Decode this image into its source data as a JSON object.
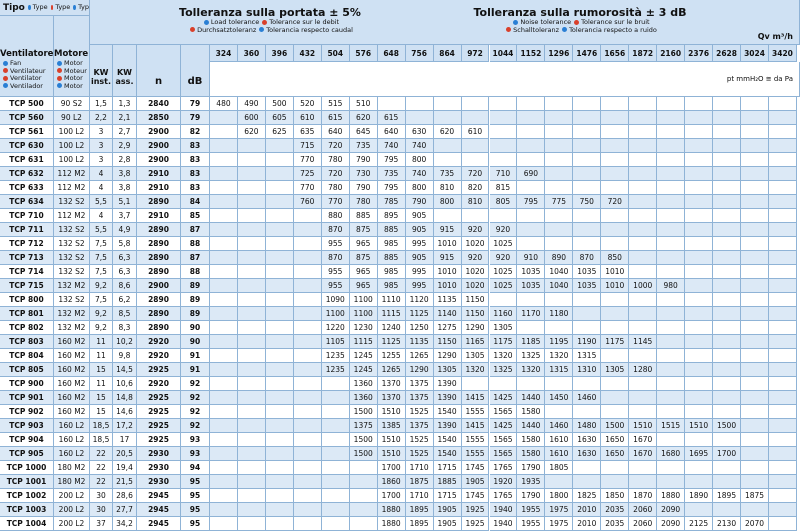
{
  "header": {
    "type_label": "Tipo",
    "type_langs": [
      "Type",
      "Type",
      "Typ"
    ],
    "fan_label": "Ventilatore",
    "fan_langs": [
      "Fan",
      "Ventilateur",
      "Ventilator",
      "Ventilador"
    ],
    "motor_label": "Motore",
    "motor_langs": [
      "Motor",
      "Moteur",
      "Motor",
      "Motor"
    ],
    "flow_tolerance": "Tolleranza sulla portata  ± 5%",
    "flow_langs": [
      "Load tolerance",
      "Tolerance sur le debit",
      "Durchsatztoleranz",
      "Tolerancia respecto caudal"
    ],
    "noise_tolerance": "Tolleranza sulla rumorosità  ± 3 dB",
    "noise_langs": [
      "Noise tolerance",
      "Tolerance sur le bruit",
      "Schalltoleranz",
      "Tolerancia respecto a ruido"
    ],
    "flow_unit": "Qv m³/h",
    "columns": [
      "KW inst.",
      "KW ass.",
      "n",
      "dB"
    ],
    "pressure_unit": "pt mmH₂O ≅ da Pa"
  },
  "flows": [
    324,
    360,
    396,
    432,
    504,
    576,
    648,
    756,
    864,
    972,
    1044,
    1152,
    1296,
    1476,
    1656,
    1872,
    2160,
    2376,
    2628,
    3024,
    3420
  ],
  "rows": [
    {
      "model": "TCP 500",
      "motor": "90 S2",
      "kw_inst": "1,5",
      "kw_ass": "1,3",
      "n": 2840,
      "db": 79,
      "pt": [
        480,
        490,
        500,
        520,
        515,
        510,
        null,
        null,
        null,
        null,
        null,
        null,
        null,
        null,
        null,
        null,
        null,
        null,
        null,
        null,
        null
      ]
    },
    {
      "model": "TCP 560",
      "motor": "90 L2",
      "kw_inst": "2,2",
      "kw_ass": "2,1",
      "n": 2850,
      "db": 79,
      "pt": [
        null,
        600,
        605,
        610,
        615,
        620,
        615,
        null,
        null,
        null,
        null,
        null,
        null,
        null,
        null,
        null,
        null,
        null,
        null,
        null,
        null
      ]
    },
    {
      "model": "TCP 561",
      "motor": "100 L2",
      "kw_inst": "3",
      "kw_ass": "2,7",
      "n": 2900,
      "db": 82,
      "pt": [
        null,
        620,
        625,
        635,
        640,
        645,
        640,
        630,
        620,
        610,
        null,
        null,
        null,
        null,
        null,
        null,
        null,
        null,
        null,
        null,
        null
      ]
    },
    {
      "model": "TCP 630",
      "motor": "100 L2",
      "kw_inst": "3",
      "kw_ass": "2,9",
      "n": 2900,
      "db": 83,
      "pt": [
        null,
        null,
        null,
        715,
        720,
        735,
        740,
        740,
        null,
        null,
        null,
        null,
        null,
        null,
        null,
        null,
        null,
        null,
        null,
        null,
        null
      ]
    },
    {
      "model": "TCP 631",
      "motor": "100 L2",
      "kw_inst": "3",
      "kw_ass": "2,8",
      "n": 2900,
      "db": 83,
      "pt": [
        null,
        null,
        null,
        770,
        780,
        790,
        795,
        800,
        null,
        null,
        null,
        null,
        null,
        null,
        null,
        null,
        null,
        null,
        null,
        null,
        null
      ]
    },
    {
      "model": "TCP 632",
      "motor": "112 M2",
      "kw_inst": "4",
      "kw_ass": "3,8",
      "n": 2910,
      "db": 83,
      "pt": [
        null,
        null,
        null,
        725,
        720,
        730,
        735,
        740,
        735,
        720,
        710,
        690,
        null,
        null,
        null,
        null,
        null,
        null,
        null,
        null,
        null
      ]
    },
    {
      "model": "TCP 633",
      "motor": "112 M2",
      "kw_inst": "4",
      "kw_ass": "3,8",
      "n": 2910,
      "db": 83,
      "pt": [
        null,
        null,
        null,
        770,
        780,
        790,
        795,
        800,
        810,
        820,
        815,
        null,
        null,
        null,
        null,
        null,
        null,
        null,
        null,
        null,
        null
      ]
    },
    {
      "model": "TCP 634",
      "motor": "132 S2",
      "kw_inst": "5,5",
      "kw_ass": "5,1",
      "n": 2890,
      "db": 84,
      "pt": [
        null,
        null,
        null,
        760,
        770,
        780,
        785,
        790,
        800,
        810,
        805,
        795,
        775,
        750,
        720,
        null,
        null,
        null,
        null,
        null,
        null
      ]
    },
    {
      "model": "TCP 710",
      "motor": "112 M2",
      "kw_inst": "4",
      "kw_ass": "3,7",
      "n": 2910,
      "db": 85,
      "pt": [
        null,
        null,
        null,
        null,
        880,
        885,
        895,
        905,
        null,
        null,
        null,
        null,
        null,
        null,
        null,
        null,
        null,
        null,
        null,
        null,
        null
      ]
    },
    {
      "model": "TCP 711",
      "motor": "132 S2",
      "kw_inst": "5,5",
      "kw_ass": "4,9",
      "n": 2890,
      "db": 87,
      "pt": [
        null,
        null,
        null,
        null,
        870,
        875,
        885,
        905,
        915,
        920,
        920,
        null,
        null,
        null,
        null,
        null,
        null,
        null,
        null,
        null,
        null
      ]
    },
    {
      "model": "TCP 712",
      "motor": "132 S2",
      "kw_inst": "7,5",
      "kw_ass": "5,8",
      "n": 2890,
      "db": 88,
      "pt": [
        null,
        null,
        null,
        null,
        955,
        965,
        985,
        995,
        1010,
        1020,
        1025,
        null,
        null,
        null,
        null,
        null,
        null,
        null,
        null,
        null,
        null
      ]
    },
    {
      "model": "TCP 713",
      "motor": "132 S2",
      "kw_inst": "7,5",
      "kw_ass": "6,3",
      "n": 2890,
      "db": 87,
      "pt": [
        null,
        null,
        null,
        null,
        870,
        875,
        885,
        905,
        915,
        920,
        920,
        910,
        890,
        870,
        850,
        null,
        null,
        null,
        null,
        null,
        null
      ]
    },
    {
      "model": "TCP 714",
      "motor": "132 S2",
      "kw_inst": "7,5",
      "kw_ass": "6,3",
      "n": 2890,
      "db": 88,
      "pt": [
        null,
        null,
        null,
        null,
        955,
        965,
        985,
        995,
        1010,
        1020,
        1025,
        1035,
        1040,
        1035,
        1010,
        null,
        null,
        null,
        null,
        null,
        null
      ]
    },
    {
      "model": "TCP 715",
      "motor": "132 M2",
      "kw_inst": "9,2",
      "kw_ass": "8,6",
      "n": 2900,
      "db": 89,
      "pt": [
        null,
        null,
        null,
        null,
        955,
        965,
        985,
        995,
        1010,
        1020,
        1025,
        1035,
        1040,
        1035,
        1010,
        1000,
        980,
        null,
        null,
        null,
        null
      ]
    },
    {
      "model": "TCP 800",
      "motor": "132 S2",
      "kw_inst": "7,5",
      "kw_ass": "6,2",
      "n": 2890,
      "db": 89,
      "pt": [
        null,
        null,
        null,
        null,
        1090,
        1100,
        1110,
        1120,
        1135,
        1150,
        null,
        null,
        null,
        null,
        null,
        null,
        null,
        null,
        null,
        null,
        null
      ]
    },
    {
      "model": "TCP 801",
      "motor": "132 M2",
      "kw_inst": "9,2",
      "kw_ass": "8,5",
      "n": 2890,
      "db": 89,
      "pt": [
        null,
        null,
        null,
        null,
        1100,
        1100,
        1115,
        1125,
        1140,
        1150,
        1160,
        1170,
        1180,
        null,
        null,
        null,
        null,
        null,
        null,
        null,
        null
      ]
    },
    {
      "model": "TCP 802",
      "motor": "132 M2",
      "kw_inst": "9,2",
      "kw_ass": "8,3",
      "n": 2890,
      "db": 90,
      "pt": [
        null,
        null,
        null,
        null,
        1220,
        1230,
        1240,
        1250,
        1275,
        1290,
        1305,
        null,
        null,
        null,
        null,
        null,
        null,
        null,
        null,
        null,
        null
      ]
    },
    {
      "model": "TCP 803",
      "motor": "160 M2",
      "kw_inst": "11",
      "kw_ass": "10,2",
      "n": 2920,
      "db": 90,
      "pt": [
        null,
        null,
        null,
        null,
        1105,
        1115,
        1125,
        1135,
        1150,
        1165,
        1175,
        1185,
        1195,
        1190,
        1175,
        1145,
        null,
        null,
        null,
        null,
        null
      ]
    },
    {
      "model": "TCP 804",
      "motor": "160 M2",
      "kw_inst": "11",
      "kw_ass": "9,8",
      "n": 2920,
      "db": 91,
      "pt": [
        null,
        null,
        null,
        null,
        1235,
        1245,
        1255,
        1265,
        1290,
        1305,
        1320,
        1325,
        1320,
        1315,
        null,
        null,
        null,
        null,
        null,
        null,
        null
      ]
    },
    {
      "model": "TCP 805",
      "motor": "160 M2",
      "kw_inst": "15",
      "kw_ass": "14,5",
      "n": 2925,
      "db": 91,
      "pt": [
        null,
        null,
        null,
        null,
        1235,
        1245,
        1265,
        1290,
        1305,
        1320,
        1325,
        1320,
        1315,
        1310,
        1305,
        1280,
        null,
        null,
        null,
        null,
        null
      ]
    },
    {
      "model": "TCP 900",
      "motor": "160 M2",
      "kw_inst": "11",
      "kw_ass": "10,6",
      "n": 2920,
      "db": 92,
      "pt": [
        null,
        null,
        null,
        null,
        null,
        1360,
        1370,
        1375,
        1390,
        null,
        null,
        null,
        null,
        null,
        null,
        null,
        null,
        null,
        null,
        null,
        null
      ]
    },
    {
      "model": "TCP 901",
      "motor": "160 M2",
      "kw_inst": "15",
      "kw_ass": "14,8",
      "n": 2925,
      "db": 92,
      "pt": [
        null,
        null,
        null,
        null,
        null,
        1360,
        1370,
        1375,
        1390,
        1415,
        1425,
        1440,
        1450,
        1460,
        null,
        null,
        null,
        null,
        null,
        null,
        null
      ]
    },
    {
      "model": "TCP 902",
      "motor": "160 M2",
      "kw_inst": "15",
      "kw_ass": "14,6",
      "n": 2925,
      "db": 92,
      "pt": [
        null,
        null,
        null,
        null,
        null,
        1500,
        1510,
        1525,
        1540,
        1555,
        1565,
        1580,
        null,
        null,
        null,
        null,
        null,
        null,
        null,
        null,
        null
      ]
    },
    {
      "model": "TCP 903",
      "motor": "160 L2",
      "kw_inst": "18,5",
      "kw_ass": "17,2",
      "n": 2925,
      "db": 92,
      "pt": [
        null,
        null,
        null,
        null,
        null,
        1375,
        1385,
        1375,
        1390,
        1415,
        1425,
        1440,
        1460,
        1480,
        1500,
        1510,
        1515,
        1510,
        1500,
        null,
        null
      ]
    },
    {
      "model": "TCP 904",
      "motor": "160 L2",
      "kw_inst": "18,5",
      "kw_ass": "17",
      "n": 2925,
      "db": 93,
      "pt": [
        null,
        null,
        null,
        null,
        null,
        1500,
        1510,
        1525,
        1540,
        1555,
        1565,
        1580,
        1610,
        1630,
        1650,
        1670,
        null,
        null,
        null,
        null,
        null
      ]
    },
    {
      "model": "TCP 905",
      "motor": "160 L2",
      "kw_inst": "22",
      "kw_ass": "20,5",
      "n": 2930,
      "db": 93,
      "pt": [
        null,
        null,
        null,
        null,
        null,
        1500,
        1510,
        1525,
        1540,
        1555,
        1565,
        1580,
        1610,
        1630,
        1650,
        1670,
        1680,
        1695,
        1700,
        null,
        null
      ]
    },
    {
      "model": "TCP 1000",
      "motor": "180 M2",
      "kw_inst": "22",
      "kw_ass": "19,4",
      "n": 2930,
      "db": 94,
      "pt": [
        null,
        null,
        null,
        null,
        null,
        null,
        1700,
        1710,
        1715,
        1745,
        1765,
        1790,
        1805,
        null,
        null,
        null,
        null,
        null,
        null,
        null,
        null
      ]
    },
    {
      "model": "TCP 1001",
      "motor": "180 M2",
      "kw_inst": "22",
      "kw_ass": "21,5",
      "n": 2930,
      "db": 95,
      "pt": [
        null,
        null,
        null,
        null,
        null,
        null,
        1860,
        1875,
        1885,
        1905,
        1920,
        1935,
        null,
        null,
        null,
        null,
        null,
        null,
        null,
        null,
        null
      ]
    },
    {
      "model": "TCP 1002",
      "motor": "200 L2",
      "kw_inst": "30",
      "kw_ass": "28,6",
      "n": 2945,
      "db": 95,
      "pt": [
        null,
        null,
        null,
        null,
        null,
        null,
        1700,
        1710,
        1715,
        1745,
        1765,
        1790,
        1800,
        1825,
        1850,
        1870,
        1880,
        1890,
        1895,
        1875,
        null
      ]
    },
    {
      "model": "TCP 1003",
      "motor": "200 L2",
      "kw_inst": "30",
      "kw_ass": "27,7",
      "n": 2945,
      "db": 95,
      "pt": [
        null,
        null,
        null,
        null,
        null,
        null,
        1880,
        1895,
        1905,
        1925,
        1940,
        1955,
        1975,
        2010,
        2035,
        2060,
        2090,
        null,
        null,
        null,
        null
      ]
    },
    {
      "model": "TCP 1004",
      "motor": "200 L2",
      "kw_inst": "37",
      "kw_ass": "34,2",
      "n": 2945,
      "db": 95,
      "pt": [
        null,
        null,
        null,
        null,
        null,
        null,
        1880,
        1895,
        1905,
        1925,
        1940,
        1955,
        1975,
        2010,
        2035,
        2060,
        2090,
        2125,
        2130,
        2070,
        null
      ]
    }
  ]
}
